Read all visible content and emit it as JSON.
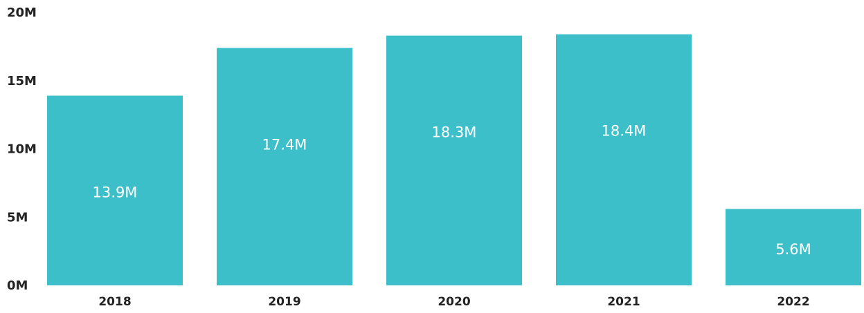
{
  "chart_data": {
    "type": "bar",
    "categories": [
      "2018",
      "2019",
      "2020",
      "2021",
      "2022"
    ],
    "values": [
      13.9,
      17.4,
      18.3,
      18.4,
      5.6
    ],
    "data_labels": [
      "13.9M",
      "17.4M",
      "18.3M",
      "18.4M",
      "5.6M"
    ],
    "y_ticks": [
      "0M",
      "5M",
      "10M",
      "15M",
      "20M"
    ],
    "y_tick_values": [
      0,
      5,
      10,
      15,
      20
    ],
    "ylim": [
      0,
      20
    ],
    "units": "millions",
    "grid": false,
    "legend": "none",
    "title": "",
    "xlabel": "",
    "ylabel": ""
  },
  "colors": {
    "bar": "#3dbfc9",
    "label": "#ffffff",
    "axis_text": "#222222"
  }
}
